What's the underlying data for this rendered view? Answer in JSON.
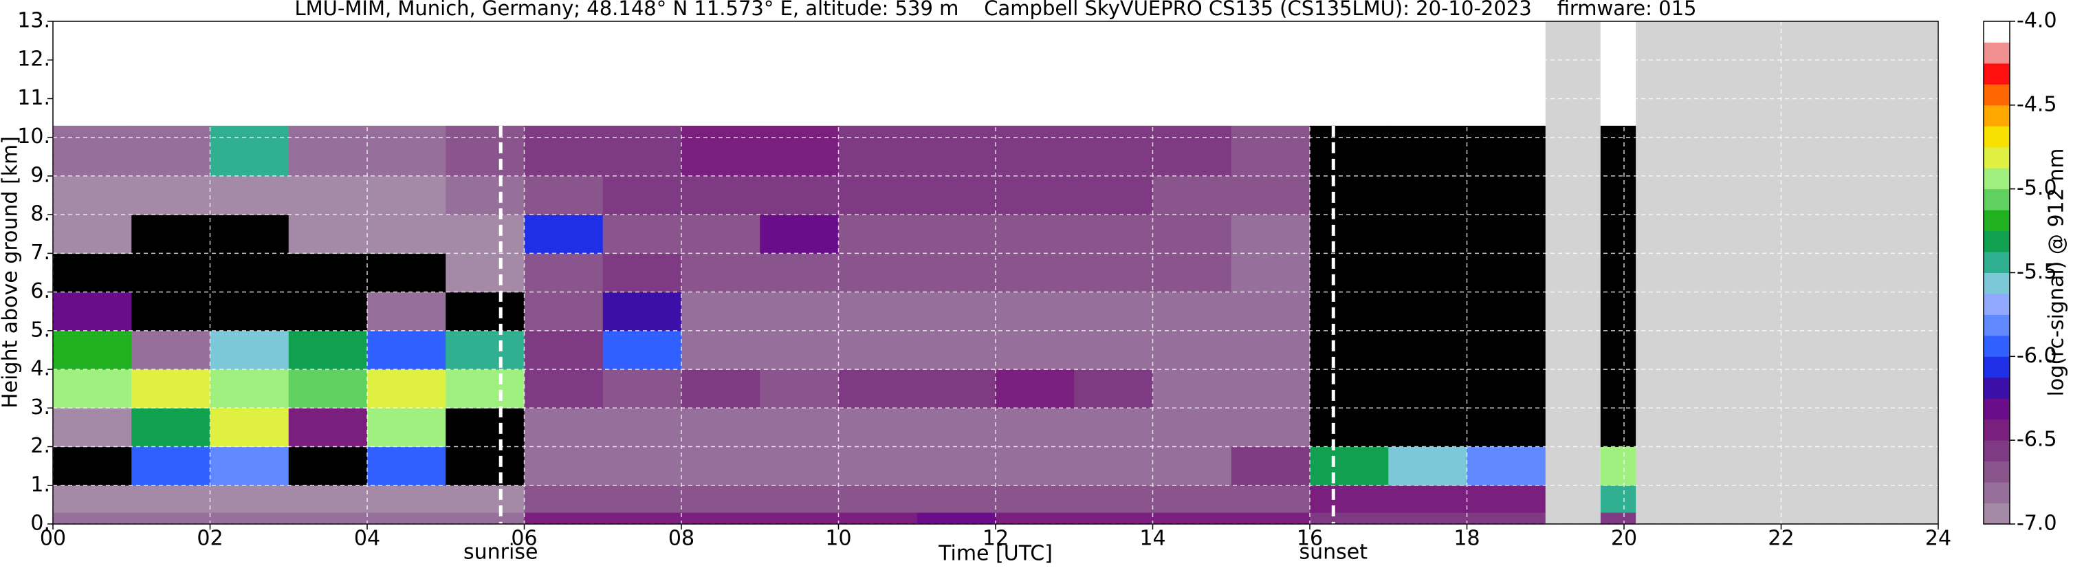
{
  "chart_data": {
    "type": "heatmap",
    "title": "LMU-MIM, Munich, Germany; 48.148° N 11.573° E, altitude: 539 m    Campbell SkyVUEPRO CS135 (CS135LMU): 20-10-2023    firmware: 015",
    "x_label": "Time [UTC]",
    "y_label": "Height above ground [km]",
    "xlim": [
      0,
      24
    ],
    "ylim": [
      0,
      13
    ],
    "xticks": [
      {
        "value": 0,
        "label": "00"
      },
      {
        "value": 2,
        "label": "02"
      },
      {
        "value": 4,
        "label": "04"
      },
      {
        "value": 6,
        "label": "06"
      },
      {
        "value": 8,
        "label": "08"
      },
      10,
      12,
      14,
      16,
      18,
      20,
      22,
      24
    ],
    "yticks": [
      {
        "value": 0,
        "label": "0."
      },
      {
        "value": 1,
        "label": "1."
      },
      {
        "value": 2,
        "label": "2."
      },
      {
        "value": 3,
        "label": "3."
      },
      {
        "value": 4,
        "label": "4."
      },
      {
        "value": 5,
        "label": "5."
      },
      {
        "value": 6,
        "label": "6."
      },
      {
        "value": 7,
        "label": "7."
      },
      {
        "value": 8,
        "label": "8."
      },
      {
        "value": 9,
        "label": "9."
      },
      {
        "value": 10,
        "label": "10."
      },
      {
        "value": 11,
        "label": "11."
      },
      {
        "value": 12,
        "label": "12."
      },
      {
        "value": 13,
        "label": "13."
      }
    ],
    "grid": true,
    "x_edges": [
      0,
      1,
      2,
      3,
      4,
      5,
      6,
      7,
      8,
      9,
      10,
      11,
      12,
      13,
      14,
      15,
      16,
      17,
      18,
      19,
      19.7,
      20.15
    ],
    "y_edges": [
      0,
      0.3,
      1,
      2,
      3,
      4,
      5,
      6,
      7,
      8,
      9,
      10.3
    ],
    "values": [
      [
        -6.8,
        -6.8,
        -6.8,
        -6.8,
        -6.8,
        -6.8,
        -6.4,
        -6.4,
        -6.4,
        -6.4,
        -6.4,
        -6.3,
        -6.4,
        -6.4,
        -6.4,
        -6.5,
        -6.6,
        -6.6,
        -6.6,
        null,
        -6.6
      ],
      [
        -6.9,
        -6.9,
        -6.9,
        -6.9,
        -6.9,
        -6.9,
        -6.7,
        -6.7,
        -6.7,
        -6.7,
        -6.7,
        -6.7,
        -6.7,
        -6.7,
        -6.7,
        -6.7,
        -6.5,
        -6.5,
        -6.5,
        null,
        -5.5
      ],
      [
        -7.2,
        -6.0,
        -5.8,
        -7.3,
        -6.0,
        -7.4,
        -6.8,
        -6.8,
        -6.8,
        -6.8,
        -6.8,
        -6.8,
        -6.8,
        -6.8,
        -6.8,
        -6.6,
        -5.3,
        -5.6,
        -5.8,
        null,
        -5.0
      ],
      [
        -7.0,
        -5.3,
        -4.8,
        -6.5,
        -5.0,
        -7.2,
        -6.8,
        -6.8,
        -6.8,
        -6.8,
        -6.8,
        -6.8,
        -6.8,
        -6.8,
        -6.8,
        -6.8,
        -7.5,
        -7.5,
        -7.5,
        null,
        -7.5
      ],
      [
        -5.0,
        -4.8,
        -4.9,
        -5.1,
        -4.8,
        -5.0,
        -6.6,
        -6.7,
        -6.6,
        -6.7,
        -6.6,
        -6.6,
        -6.5,
        -6.6,
        -6.8,
        -6.8,
        -7.5,
        -7.5,
        -7.5,
        null,
        -7.5
      ],
      [
        -5.2,
        -6.8,
        -5.6,
        -5.3,
        -6.0,
        -5.5,
        -6.6,
        -6.0,
        -6.8,
        -6.8,
        -6.8,
        -6.8,
        -6.8,
        -6.8,
        -6.8,
        -6.8,
        -7.5,
        -7.5,
        -7.5,
        null,
        -7.5
      ],
      [
        -6.3,
        -7.3,
        -7.3,
        -7.2,
        -6.8,
        -7.1,
        -6.7,
        -6.2,
        -6.8,
        -6.8,
        -6.8,
        -6.8,
        -6.8,
        -6.8,
        -6.8,
        -6.8,
        -7.4,
        -7.4,
        -7.4,
        null,
        -7.4
      ],
      [
        -7.2,
        -7.2,
        -7.2,
        -7.2,
        -7.1,
        -7.0,
        -6.7,
        -6.6,
        -6.7,
        -6.7,
        -6.7,
        -6.7,
        -6.7,
        -6.7,
        -6.7,
        -6.8,
        -7.4,
        -7.4,
        -7.4,
        null,
        -7.3
      ],
      [
        -7.0,
        -7.1,
        -7.1,
        -7.0,
        -7.0,
        -6.9,
        -6.1,
        -6.7,
        -6.7,
        -6.3,
        -6.7,
        -6.7,
        -6.7,
        -6.7,
        -6.7,
        -6.8,
        -7.3,
        -7.3,
        -7.3,
        null,
        -7.3
      ],
      [
        -6.9,
        -6.9,
        -6.9,
        -6.9,
        -6.9,
        -6.8,
        -6.7,
        -6.6,
        -6.6,
        -6.6,
        -6.6,
        -6.6,
        -6.6,
        -6.6,
        -6.7,
        -6.7,
        -7.2,
        -7.2,
        -7.2,
        null,
        -7.2
      ],
      [
        -6.8,
        -6.8,
        -5.5,
        -6.8,
        -6.8,
        -6.7,
        -6.6,
        -6.6,
        -6.5,
        -6.5,
        -6.6,
        -6.6,
        -6.6,
        -6.6,
        -6.6,
        -6.7,
        -7.1,
        -7.1,
        -7.1,
        null,
        -7.1
      ]
    ],
    "no_data": [
      [
        19.0,
        19.7
      ],
      [
        20.15,
        24
      ]
    ],
    "no_data_color": "#d3d3d3",
    "under_color": "#000000",
    "annotations": [
      {
        "x": 5.7,
        "label": "sunrise"
      },
      {
        "x": 16.3,
        "label": "sunset"
      }
    ],
    "colorbar": {
      "label": "log(rc-signal) @ 912 nm",
      "clim": [
        -7,
        -4
      ],
      "ticks": [
        {
          "value": -7,
          "label": "-7.0"
        },
        {
          "value": -6.5,
          "label": "-6.5"
        },
        {
          "value": -6,
          "label": "-6.0"
        },
        {
          "value": -5.5,
          "label": "-5.5"
        },
        {
          "value": -5,
          "label": "-5.0"
        },
        {
          "value": -4.5,
          "label": "-4.5"
        },
        {
          "value": -4,
          "label": "-4.0"
        }
      ],
      "colors": [
        "#a48aa6",
        "#96709a",
        "#8a558c",
        "#7e3a82",
        "#7a1f7e",
        "#6a0d8a",
        "#3c10a8",
        "#1f2fe8",
        "#3060ff",
        "#6088ff",
        "#90a8ff",
        "#7cc8d8",
        "#30b090",
        "#10a050",
        "#20b020",
        "#60d060",
        "#a0f080",
        "#e0f040",
        "#f8e000",
        "#ffa800",
        "#ff6800",
        "#ff1010",
        "#f09090",
        "#ffffff"
      ]
    }
  }
}
